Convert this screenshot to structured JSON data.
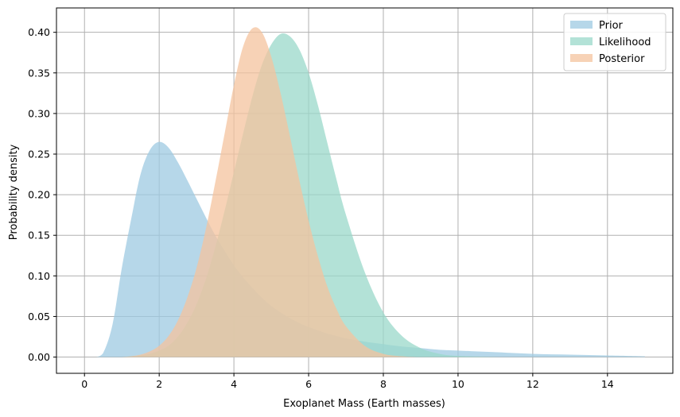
{
  "chart_data": {
    "type": "area",
    "title": "",
    "xlabel": "Exoplanet Mass (Earth masses)",
    "ylabel": "Probability density",
    "xlim": [
      -0.75,
      15.75
    ],
    "ylim": [
      -0.02,
      0.43
    ],
    "x_ticks": [
      0,
      2,
      4,
      6,
      8,
      10,
      12,
      14
    ],
    "y_ticks": [
      0.0,
      0.05,
      0.1,
      0.15,
      0.2,
      0.25,
      0.3,
      0.35,
      0.4
    ],
    "x_tick_labels": [
      "0",
      "2",
      "4",
      "6",
      "8",
      "10",
      "12",
      "14"
    ],
    "y_tick_labels": [
      "0.00",
      "0.05",
      "0.10",
      "0.15",
      "0.20",
      "0.25",
      "0.30",
      "0.35",
      "0.40"
    ],
    "grid": true,
    "legend_position": "top-right",
    "x": [
      0.3,
      0.5,
      0.75,
      1.0,
      1.25,
      1.5,
      1.75,
      2.0,
      2.25,
      2.5,
      2.75,
      3.0,
      3.25,
      3.5,
      3.75,
      4.0,
      4.25,
      4.5,
      4.75,
      5.0,
      5.25,
      5.5,
      5.75,
      6.0,
      6.25,
      6.5,
      6.75,
      7.0,
      7.5,
      8.0,
      8.5,
      9.0,
      9.5,
      10.0,
      11.0,
      12.0,
      13.0,
      14.0,
      15.0
    ],
    "series": [
      {
        "name": "Prior",
        "color": "#9ecae1",
        "values": [
          0.0,
          0.005,
          0.04,
          0.11,
          0.17,
          0.225,
          0.255,
          0.265,
          0.258,
          0.24,
          0.218,
          0.195,
          0.172,
          0.15,
          0.131,
          0.113,
          0.098,
          0.085,
          0.073,
          0.063,
          0.055,
          0.048,
          0.042,
          0.037,
          0.033,
          0.029,
          0.026,
          0.023,
          0.019,
          0.016,
          0.013,
          0.011,
          0.009,
          0.008,
          0.006,
          0.004,
          0.003,
          0.002,
          0.001
        ]
      },
      {
        "name": "Likelihood",
        "color": "#99d8c9",
        "values": [
          0.0,
          0.0,
          0.0,
          0.0,
          0.001,
          0.002,
          0.004,
          0.008,
          0.014,
          0.025,
          0.042,
          0.065,
          0.096,
          0.135,
          0.18,
          0.228,
          0.276,
          0.322,
          0.36,
          0.385,
          0.398,
          0.395,
          0.379,
          0.35,
          0.31,
          0.264,
          0.218,
          0.175,
          0.105,
          0.055,
          0.026,
          0.011,
          0.004,
          0.0015,
          0.0002,
          0.0,
          0.0,
          0.0,
          0.0
        ]
      },
      {
        "name": "Posterior",
        "color": "#f4c39e",
        "values": [
          0.0,
          0.0,
          0.0,
          0.0,
          0.001,
          0.003,
          0.007,
          0.014,
          0.026,
          0.045,
          0.073,
          0.11,
          0.158,
          0.215,
          0.275,
          0.335,
          0.383,
          0.405,
          0.4,
          0.37,
          0.325,
          0.272,
          0.218,
          0.168,
          0.124,
          0.087,
          0.059,
          0.038,
          0.014,
          0.004,
          0.001,
          0.0,
          0.0,
          0.0,
          0.0,
          0.0,
          0.0,
          0.0,
          0.0
        ]
      }
    ]
  }
}
